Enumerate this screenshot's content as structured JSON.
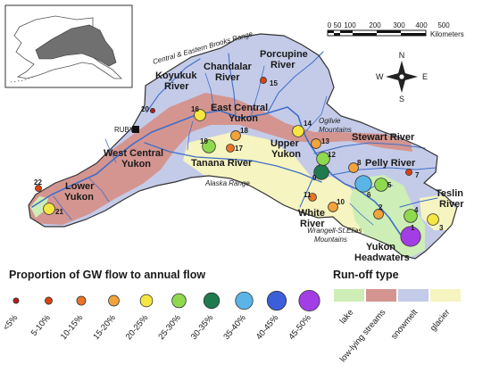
{
  "inset": {
    "name": "alaska-inset"
  },
  "scale_bar": {
    "ticks": [
      "0",
      "50",
      "100",
      "200",
      "300",
      "400",
      "500"
    ],
    "unit": "Kilometers"
  },
  "north_arrow": {
    "n": "N",
    "s": "S",
    "e": "E",
    "w": "W"
  },
  "ranges": {
    "brooks": "Central & Eastern Brooks Range",
    "ogilvie": "Ogilvie Mountains",
    "alaska": "Alaska Range",
    "wrangell": "Wrangell-St.Elias Mountains"
  },
  "regions": {
    "koyukuk": "Koyukuk River",
    "chandalar": "Chandalar River",
    "porcupine": "Porcupine River",
    "east_central": "East Central Yukon",
    "ruby": "RUBY",
    "west_central": "West Central Yukon",
    "lower": "Lower Yukon",
    "tanana": "Tanana River",
    "upper": "Upper Yukon",
    "stewart": "Stewart River",
    "pelly": "Pelly River",
    "teslin": "Teslin River",
    "white": "White River",
    "headwaters": "Yukon Headwaters"
  },
  "colors": {
    "lt5": "#b71c1c",
    "c5_10": "#d84315",
    "c10_15": "#e8752a",
    "c15_20": "#f2a33a",
    "c20_25": "#f5e642",
    "c25_30": "#8fd94f",
    "c30_35": "#1f7a4d",
    "c35_40": "#5ab4e8",
    "c40_45": "#3a5fd9",
    "c45_50": "#a33ee6",
    "lake": "#cdeeb6",
    "lowlying": "#d49590",
    "snowmelt": "#c4cbe8",
    "glacier": "#f6f4c0",
    "river": "#3f6fc8",
    "outline": "#333333"
  },
  "sites": [
    {
      "n": "1",
      "cls": "c45_50"
    },
    {
      "n": "2",
      "cls": "c15_20"
    },
    {
      "n": "3",
      "cls": "c20_25"
    },
    {
      "n": "4",
      "cls": "c25_30"
    },
    {
      "n": "5",
      "cls": "c25_30"
    },
    {
      "n": "6",
      "cls": "c35_40"
    },
    {
      "n": "7",
      "cls": "c5_10"
    },
    {
      "n": "8",
      "cls": "c15_20"
    },
    {
      "n": "9",
      "cls": "c30_35"
    },
    {
      "n": "10",
      "cls": "c15_20"
    },
    {
      "n": "11",
      "cls": "c10_15"
    },
    {
      "n": "12",
      "cls": "c25_30"
    },
    {
      "n": "13",
      "cls": "c15_20"
    },
    {
      "n": "14",
      "cls": "c20_25"
    },
    {
      "n": "15",
      "cls": "c5_10"
    },
    {
      "n": "16",
      "cls": "c20_25"
    },
    {
      "n": "17",
      "cls": "c10_15"
    },
    {
      "n": "18",
      "cls": "c15_20"
    },
    {
      "n": "19",
      "cls": "c25_30"
    },
    {
      "n": "20",
      "cls": "lt5"
    },
    {
      "n": "21",
      "cls": "c20_25"
    },
    {
      "n": "22",
      "cls": "c5_10"
    }
  ],
  "legend_gw": {
    "title": "Proportion of GW flow to annual flow",
    "items": [
      {
        "label": "<5%",
        "cls": "lt5"
      },
      {
        "label": "5-10%",
        "cls": "c5_10"
      },
      {
        "label": "10-15%",
        "cls": "c10_15"
      },
      {
        "label": "15-20%",
        "cls": "c15_20"
      },
      {
        "label": "20-25%",
        "cls": "c20_25"
      },
      {
        "label": "25-30%",
        "cls": "c25_30"
      },
      {
        "label": "30-35%",
        "cls": "c30_35"
      },
      {
        "label": "35-40%",
        "cls": "c35_40"
      },
      {
        "label": "40-45%",
        "cls": "c40_45"
      },
      {
        "label": "45-50%",
        "cls": "c45_50"
      }
    ]
  },
  "legend_runoff": {
    "title": "Run-off type",
    "items": [
      {
        "label": "lake",
        "cls": "lake"
      },
      {
        "label": "low-lying streams",
        "cls": "lowlying"
      },
      {
        "label": "snowmelt",
        "cls": "snowmelt"
      },
      {
        "label": "glacier",
        "cls": "glacier"
      }
    ]
  }
}
